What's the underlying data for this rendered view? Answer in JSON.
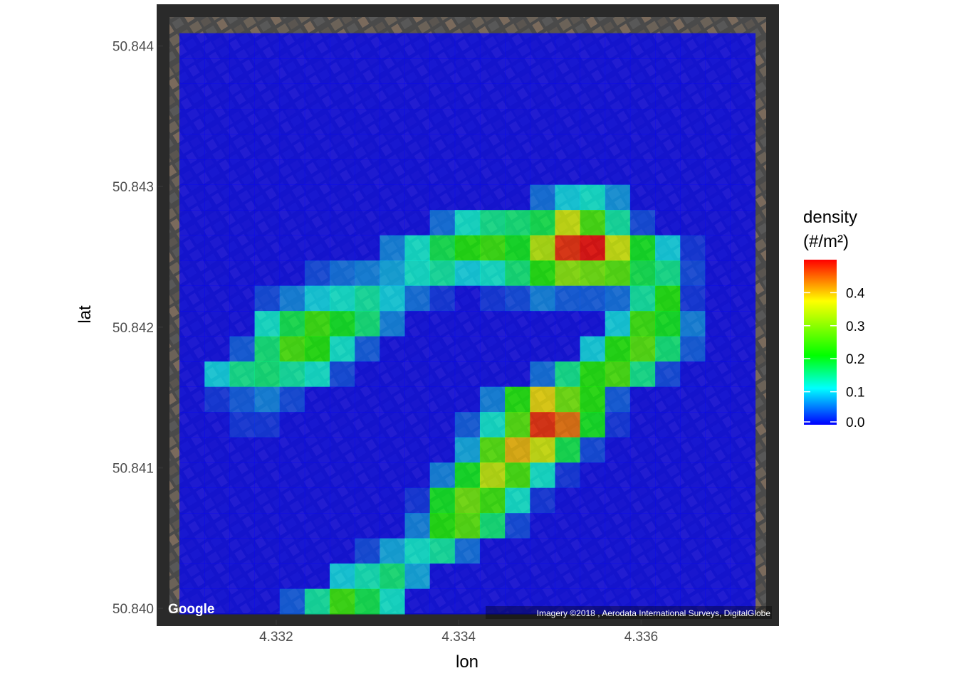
{
  "chart_data": {
    "type": "heatmap",
    "title": "",
    "xlabel": "lon",
    "ylabel": "lat",
    "xlim": [
      4.33076,
      4.33744
    ],
    "ylim": [
      50.83992,
      50.84425
    ],
    "x_ticks": [
      4.332,
      4.334,
      4.336
    ],
    "x_tick_labels": [
      "4.332",
      "4.334",
      "4.336"
    ],
    "y_ticks": [
      50.84,
      50.841,
      50.842,
      50.843,
      50.844
    ],
    "y_tick_labels": [
      "50.840",
      "50.841",
      "50.842",
      "50.843",
      "50.844"
    ],
    "grid": {
      "x_min": 4.33094,
      "x_max": 4.33725,
      "y_min": 50.83996,
      "y_max": 50.84409,
      "nx": 23,
      "ny": 23,
      "note": "density values listed row by row, top (north) to bottom (south), west to east"
    },
    "values": [
      [
        0,
        0,
        0,
        0,
        0,
        0,
        0,
        0,
        0,
        0,
        0,
        0,
        0,
        0,
        0,
        0,
        0,
        0,
        0,
        0,
        0,
        0,
        0
      ],
      [
        0,
        0,
        0,
        0,
        0,
        0,
        0,
        0,
        0,
        0,
        0,
        0,
        0,
        0,
        0,
        0,
        0,
        0,
        0,
        0,
        0,
        0,
        0
      ],
      [
        0,
        0,
        0,
        0,
        0,
        0,
        0,
        0,
        0,
        0,
        0,
        0,
        0,
        0,
        0,
        0,
        0,
        0,
        0,
        0,
        0,
        0,
        0
      ],
      [
        0,
        0,
        0,
        0,
        0,
        0,
        0,
        0,
        0,
        0,
        0,
        0,
        0,
        0,
        0,
        0,
        0,
        0,
        0,
        0,
        0,
        0,
        0
      ],
      [
        0,
        0,
        0,
        0,
        0,
        0,
        0,
        0,
        0,
        0,
        0,
        0,
        0,
        0,
        0,
        0,
        0,
        0,
        0,
        0,
        0,
        0,
        0
      ],
      [
        0,
        0,
        0,
        0,
        0,
        0,
        0,
        0,
        0,
        0,
        0,
        0,
        0,
        0,
        0,
        0,
        0,
        0,
        0,
        0,
        0,
        0,
        0
      ],
      [
        0,
        0,
        0,
        0,
        0,
        0,
        0,
        0,
        0,
        0,
        0,
        0,
        0,
        0,
        0.05,
        0.1,
        0.12,
        0.07,
        0,
        0,
        0,
        0,
        0
      ],
      [
        0,
        0,
        0,
        0,
        0,
        0,
        0,
        0,
        0,
        0,
        0.05,
        0.12,
        0.15,
        0.16,
        0.18,
        0.35,
        0.25,
        0.14,
        0.03,
        0,
        0,
        0,
        0
      ],
      [
        0,
        0,
        0,
        0,
        0,
        0,
        0,
        0,
        0.06,
        0.12,
        0.18,
        0.22,
        0.24,
        0.2,
        0.33,
        0.48,
        0.5,
        0.35,
        0.2,
        0.1,
        0.02,
        0,
        0
      ],
      [
        0,
        0,
        0,
        0,
        0,
        0.03,
        0.05,
        0.06,
        0.08,
        0.12,
        0.14,
        0.1,
        0.12,
        0.16,
        0.22,
        0.3,
        0.28,
        0.26,
        0.18,
        0.15,
        0.03,
        0,
        0
      ],
      [
        0,
        0,
        0,
        0.03,
        0.06,
        0.1,
        0.12,
        0.14,
        0.1,
        0.05,
        0.02,
        0,
        0.02,
        0.03,
        0.06,
        0.04,
        0.04,
        0.05,
        0.14,
        0.22,
        0.02,
        0,
        0
      ],
      [
        0,
        0,
        0,
        0.12,
        0.18,
        0.24,
        0.2,
        0.16,
        0.06,
        0,
        0,
        0,
        0,
        0,
        0,
        0,
        0,
        0.1,
        0.24,
        0.2,
        0.06,
        0,
        0
      ],
      [
        0,
        0,
        0.04,
        0.16,
        0.25,
        0.22,
        0.12,
        0.04,
        0,
        0,
        0,
        0,
        0,
        0,
        0,
        0,
        0.1,
        0.22,
        0.26,
        0.16,
        0.04,
        0,
        0
      ],
      [
        0,
        0.1,
        0.15,
        0.16,
        0.14,
        0.12,
        0.03,
        0,
        0,
        0,
        0,
        0,
        0,
        0,
        0.05,
        0.15,
        0.22,
        0.25,
        0.15,
        0.03,
        0,
        0,
        0
      ],
      [
        0,
        0.02,
        0.04,
        0.06,
        0.03,
        0,
        0,
        0,
        0,
        0,
        0,
        0,
        0.06,
        0.22,
        0.38,
        0.28,
        0.22,
        0.04,
        0,
        0,
        0,
        0,
        0
      ],
      [
        0,
        0,
        0.02,
        0.02,
        0,
        0,
        0,
        0,
        0,
        0,
        0,
        0.04,
        0.12,
        0.26,
        0.48,
        0.44,
        0.2,
        0.02,
        0,
        0,
        0,
        0,
        0
      ],
      [
        0,
        0,
        0,
        0,
        0,
        0,
        0,
        0,
        0,
        0,
        0,
        0.08,
        0.26,
        0.4,
        0.35,
        0.18,
        0.03,
        0,
        0,
        0,
        0,
        0,
        0
      ],
      [
        0,
        0,
        0,
        0,
        0,
        0,
        0,
        0,
        0,
        0,
        0.06,
        0.2,
        0.34,
        0.25,
        0.12,
        0.02,
        0,
        0,
        0,
        0,
        0,
        0,
        0
      ],
      [
        0,
        0,
        0,
        0,
        0,
        0,
        0,
        0,
        0,
        0.02,
        0.2,
        0.28,
        0.24,
        0.12,
        0.02,
        0,
        0,
        0,
        0,
        0,
        0,
        0,
        0
      ],
      [
        0,
        0,
        0,
        0,
        0,
        0,
        0,
        0,
        0,
        0.06,
        0.22,
        0.26,
        0.16,
        0.03,
        0,
        0,
        0,
        0,
        0,
        0,
        0,
        0,
        0
      ],
      [
        0,
        0,
        0,
        0,
        0,
        0,
        0,
        0.03,
        0.08,
        0.12,
        0.14,
        0.05,
        0,
        0,
        0,
        0,
        0,
        0,
        0,
        0,
        0,
        0,
        0
      ],
      [
        0,
        0,
        0,
        0,
        0,
        0,
        0.1,
        0.13,
        0.16,
        0.08,
        0,
        0,
        0,
        0,
        0,
        0,
        0,
        0,
        0,
        0,
        0,
        0,
        0
      ],
      [
        0,
        0,
        0,
        0,
        0.04,
        0.14,
        0.24,
        0.18,
        0.12,
        0,
        0,
        0,
        0,
        0,
        0,
        0,
        0,
        0,
        0,
        0,
        0,
        0,
        0
      ]
    ],
    "legend": {
      "title_line1": "density",
      "title_line2": "(#/m²)",
      "labels": [
        "0.4",
        "0.3",
        "0.2",
        "0.1",
        "0.0"
      ],
      "values": [
        0.4,
        0.3,
        0.2,
        0.1,
        0.0
      ],
      "range": [
        0,
        0.5
      ],
      "colors": [
        "#0000ff",
        "#00ffff",
        "#00ff00",
        "#ffff00",
        "#ff0000"
      ],
      "placement": "right"
    },
    "basemap": {
      "logo_text": "Google",
      "attribution": "Imagery ©2018 , Aerodata International Surveys, DigitalGlobe"
    }
  }
}
